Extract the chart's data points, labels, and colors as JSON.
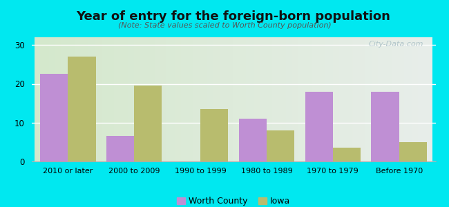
{
  "title": "Year of entry for the foreign-born population",
  "subtitle": "(Note: State values scaled to Worth County population)",
  "categories": [
    "2010 or later",
    "2000 to 2009",
    "1990 to 1999",
    "1980 to 1989",
    "1970 to 1979",
    "Before 1970"
  ],
  "worth_county": [
    22.5,
    6.5,
    0,
    11.0,
    18.0,
    18.0
  ],
  "iowa": [
    27.0,
    19.5,
    13.5,
    8.0,
    3.5,
    5.0
  ],
  "worth_county_color": "#bf8fd4",
  "iowa_color": "#b8bc6e",
  "background_color": "#00e8f0",
  "plot_bg_left": "#d4e8cc",
  "plot_bg_right": "#e8eeea",
  "ylim": [
    0,
    32
  ],
  "yticks": [
    0,
    10,
    20,
    30
  ],
  "bar_width": 0.42,
  "legend_labels": [
    "Worth County",
    "Iowa"
  ],
  "watermark": "City-Data.com"
}
